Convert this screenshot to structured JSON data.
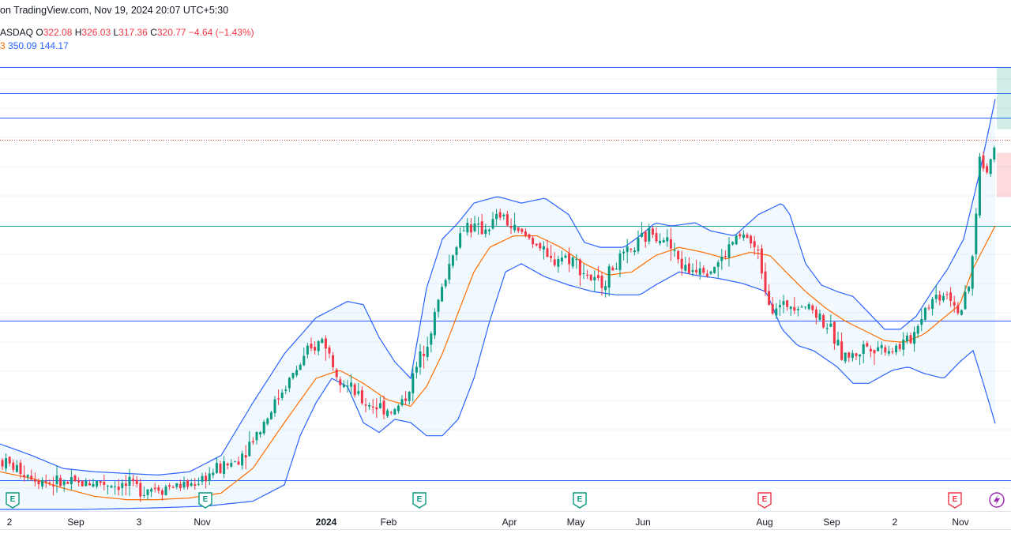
{
  "header": {
    "source_line": "on TradingView.com, Nov 19, 2024 20:07 UTC+5:30"
  },
  "ohlc": {
    "symbol_fragment": "ASDAQ",
    "open_label": "O",
    "open": "322.08",
    "high_label": "H",
    "high": "326.03",
    "low_label": "L",
    "low": "317.36",
    "close_label": "C",
    "close": "320.77",
    "change": "−4.64 (−1.43%)"
  },
  "bollinger": {
    "basis_fragment": "3",
    "upper": "350.09",
    "lower": "144.17"
  },
  "x_axis_labels": [
    {
      "text": "2",
      "bold": false
    },
    {
      "text": "Sep",
      "bold": false
    },
    {
      "text": "3",
      "bold": false
    },
    {
      "text": "Nov",
      "bold": false
    },
    {
      "text": "2024",
      "bold": true
    },
    {
      "text": "Feb",
      "bold": false
    },
    {
      "text": "Apr",
      "bold": false
    },
    {
      "text": "May",
      "bold": false
    },
    {
      "text": "Jun",
      "bold": false
    },
    {
      "text": "Aug",
      "bold": false
    },
    {
      "text": "Sep",
      "bold": false
    },
    {
      "text": "2",
      "bold": false
    },
    {
      "text": "Nov",
      "bold": false
    }
  ],
  "earnings_markers": [
    {
      "label": "E",
      "kind": "beat"
    },
    {
      "label": "E",
      "kind": "beat"
    },
    {
      "label": "E",
      "kind": "beat"
    },
    {
      "label": "E",
      "kind": "beat"
    },
    {
      "label": "E",
      "kind": "miss"
    },
    {
      "label": "E",
      "kind": "miss"
    }
  ],
  "lightning_icon": "lightning-icon",
  "colors": {
    "up": "#089981",
    "down": "#f23645",
    "band": "#2962ff",
    "basis": "#ff6d00",
    "hline_blue": "#2962ff",
    "hline_teal": "#26a69a",
    "current_price": "#f23645"
  },
  "chart_data": {
    "type": "candlestick",
    "title": "",
    "xlabel": "",
    "ylabel": "",
    "time_axis_ticks": [
      "2",
      "Sep",
      "3",
      "Nov",
      "2024",
      "Feb",
      "Apr",
      "May",
      "Jun",
      "Aug",
      "Sep",
      "2",
      "Nov"
    ],
    "last_bar": {
      "open": 322.08,
      "high": 326.03,
      "low": 317.36,
      "close": 320.77,
      "change": -4.64,
      "change_pct": -1.43
    },
    "bollinger_last": {
      "upper": 350.09,
      "lower": 144.17
    },
    "ylim": [
      95,
      365
    ],
    "price_series_control_points": [
      [
        0,
        125
      ],
      [
        30,
        118
      ],
      [
        60,
        112
      ],
      [
        90,
        110
      ],
      [
        120,
        112
      ],
      [
        150,
        110
      ],
      [
        180,
        108
      ],
      [
        210,
        109
      ],
      [
        240,
        110
      ],
      [
        270,
        118
      ],
      [
        300,
        125
      ],
      [
        330,
        145
      ],
      [
        360,
        170
      ],
      [
        390,
        190
      ],
      [
        410,
        200
      ],
      [
        420,
        185
      ],
      [
        440,
        170
      ],
      [
        460,
        160
      ],
      [
        480,
        158
      ],
      [
        500,
        155
      ],
      [
        515,
        165
      ],
      [
        530,
        185
      ],
      [
        545,
        205
      ],
      [
        560,
        230
      ],
      [
        575,
        255
      ],
      [
        590,
        270
      ],
      [
        605,
        265
      ],
      [
        620,
        268
      ],
      [
        635,
        275
      ],
      [
        650,
        265
      ],
      [
        665,
        262
      ],
      [
        680,
        258
      ],
      [
        695,
        245
      ],
      [
        710,
        250
      ],
      [
        725,
        248
      ],
      [
        740,
        240
      ],
      [
        755,
        232
      ],
      [
        765,
        235
      ],
      [
        780,
        245
      ],
      [
        795,
        250
      ],
      [
        810,
        258
      ],
      [
        825,
        265
      ],
      [
        840,
        262
      ],
      [
        855,
        250
      ],
      [
        870,
        240
      ],
      [
        885,
        245
      ],
      [
        900,
        242
      ],
      [
        915,
        248
      ],
      [
        930,
        260
      ],
      [
        945,
        262
      ],
      [
        960,
        250
      ],
      [
        975,
        220
      ],
      [
        990,
        218
      ],
      [
        1005,
        222
      ],
      [
        1020,
        220
      ],
      [
        1035,
        215
      ],
      [
        1050,
        205
      ],
      [
        1065,
        190
      ],
      [
        1080,
        188
      ],
      [
        1095,
        195
      ],
      [
        1110,
        195
      ],
      [
        1125,
        193
      ],
      [
        1140,
        195
      ],
      [
        1155,
        200
      ],
      [
        1170,
        218
      ],
      [
        1185,
        225
      ],
      [
        1200,
        228
      ],
      [
        1215,
        215
      ],
      [
        1225,
        225
      ],
      [
        1232,
        250
      ],
      [
        1240,
        310
      ],
      [
        1248,
        300
      ],
      [
        1255,
        310
      ],
      [
        1262,
        320.77
      ]
    ],
    "upper_band_control_points": [
      [
        0,
        135
      ],
      [
        40,
        128
      ],
      [
        80,
        120
      ],
      [
        120,
        118
      ],
      [
        160,
        117
      ],
      [
        200,
        116
      ],
      [
        240,
        118
      ],
      [
        280,
        128
      ],
      [
        320,
        160
      ],
      [
        360,
        190
      ],
      [
        400,
        212
      ],
      [
        440,
        222
      ],
      [
        460,
        220
      ],
      [
        480,
        200
      ],
      [
        500,
        185
      ],
      [
        520,
        175
      ],
      [
        540,
        230
      ],
      [
        560,
        260
      ],
      [
        580,
        270
      ],
      [
        600,
        282
      ],
      [
        630,
        286
      ],
      [
        660,
        282
      ],
      [
        690,
        285
      ],
      [
        720,
        275
      ],
      [
        740,
        258
      ],
      [
        760,
        255
      ],
      [
        790,
        255
      ],
      [
        810,
        262
      ],
      [
        830,
        270
      ],
      [
        850,
        268
      ],
      [
        880,
        270
      ],
      [
        900,
        265
      ],
      [
        930,
        262
      ],
      [
        960,
        275
      ],
      [
        990,
        282
      ],
      [
        1000,
        275
      ],
      [
        1020,
        245
      ],
      [
        1040,
        232
      ],
      [
        1060,
        228
      ],
      [
        1080,
        225
      ],
      [
        1100,
        215
      ],
      [
        1120,
        205
      ],
      [
        1140,
        205
      ],
      [
        1160,
        213
      ],
      [
        1180,
        228
      ],
      [
        1200,
        242
      ],
      [
        1220,
        260
      ],
      [
        1240,
        300
      ],
      [
        1262,
        350.09
      ]
    ],
    "lower_band_control_points": [
      [
        0,
        95
      ],
      [
        100,
        95
      ],
      [
        200,
        96
      ],
      [
        260,
        97
      ],
      [
        320,
        100
      ],
      [
        360,
        110
      ],
      [
        380,
        140
      ],
      [
        400,
        160
      ],
      [
        420,
        175
      ],
      [
        440,
        170
      ],
      [
        460,
        148
      ],
      [
        480,
        142
      ],
      [
        500,
        150
      ],
      [
        520,
        148
      ],
      [
        540,
        140
      ],
      [
        560,
        140
      ],
      [
        580,
        150
      ],
      [
        600,
        175
      ],
      [
        620,
        210
      ],
      [
        640,
        240
      ],
      [
        660,
        245
      ],
      [
        690,
        237
      ],
      [
        720,
        232
      ],
      [
        750,
        228
      ],
      [
        780,
        226
      ],
      [
        810,
        226
      ],
      [
        830,
        232
      ],
      [
        860,
        240
      ],
      [
        880,
        238
      ],
      [
        910,
        236
      ],
      [
        940,
        233
      ],
      [
        970,
        228
      ],
      [
        990,
        205
      ],
      [
        1010,
        195
      ],
      [
        1030,
        192
      ],
      [
        1060,
        182
      ],
      [
        1080,
        172
      ],
      [
        1100,
        172
      ],
      [
        1130,
        180
      ],
      [
        1150,
        182
      ],
      [
        1170,
        178
      ],
      [
        1195,
        175
      ],
      [
        1215,
        185
      ],
      [
        1232,
        192
      ],
      [
        1245,
        172
      ],
      [
        1262,
        144.17
      ]
    ],
    "basis_control_points": [
      [
        0,
        118
      ],
      [
        40,
        114
      ],
      [
        80,
        108
      ],
      [
        120,
        103
      ],
      [
        160,
        101
      ],
      [
        200,
        101
      ],
      [
        240,
        102
      ],
      [
        280,
        105
      ],
      [
        320,
        120
      ],
      [
        360,
        148
      ],
      [
        400,
        175
      ],
      [
        430,
        180
      ],
      [
        460,
        172
      ],
      [
        490,
        162
      ],
      [
        520,
        158
      ],
      [
        540,
        170
      ],
      [
        560,
        190
      ],
      [
        580,
        215
      ],
      [
        600,
        240
      ],
      [
        620,
        255
      ],
      [
        650,
        262
      ],
      [
        680,
        262
      ],
      [
        710,
        255
      ],
      [
        740,
        245
      ],
      [
        770,
        238
      ],
      [
        800,
        240
      ],
      [
        830,
        250
      ],
      [
        860,
        255
      ],
      [
        890,
        252
      ],
      [
        920,
        248
      ],
      [
        950,
        252
      ],
      [
        975,
        250
      ],
      [
        995,
        240
      ],
      [
        1020,
        228
      ],
      [
        1045,
        218
      ],
      [
        1070,
        210
      ],
      [
        1095,
        204
      ],
      [
        1120,
        198
      ],
      [
        1145,
        197
      ],
      [
        1170,
        202
      ],
      [
        1195,
        212
      ],
      [
        1215,
        220
      ],
      [
        1232,
        242
      ],
      [
        1262,
        270
      ]
    ],
    "horizontal_levels": [
      {
        "price": 365,
        "color": "#2962ff"
      },
      {
        "price": 349,
        "color": "#2962ff"
      },
      {
        "price": 334,
        "color": "#2962ff"
      },
      {
        "price": 268,
        "color": "#26a69a"
      },
      {
        "price": 210,
        "color": "#2962ff"
      },
      {
        "price": 113,
        "color": "#2962ff"
      }
    ],
    "current_price": 320.77
  }
}
